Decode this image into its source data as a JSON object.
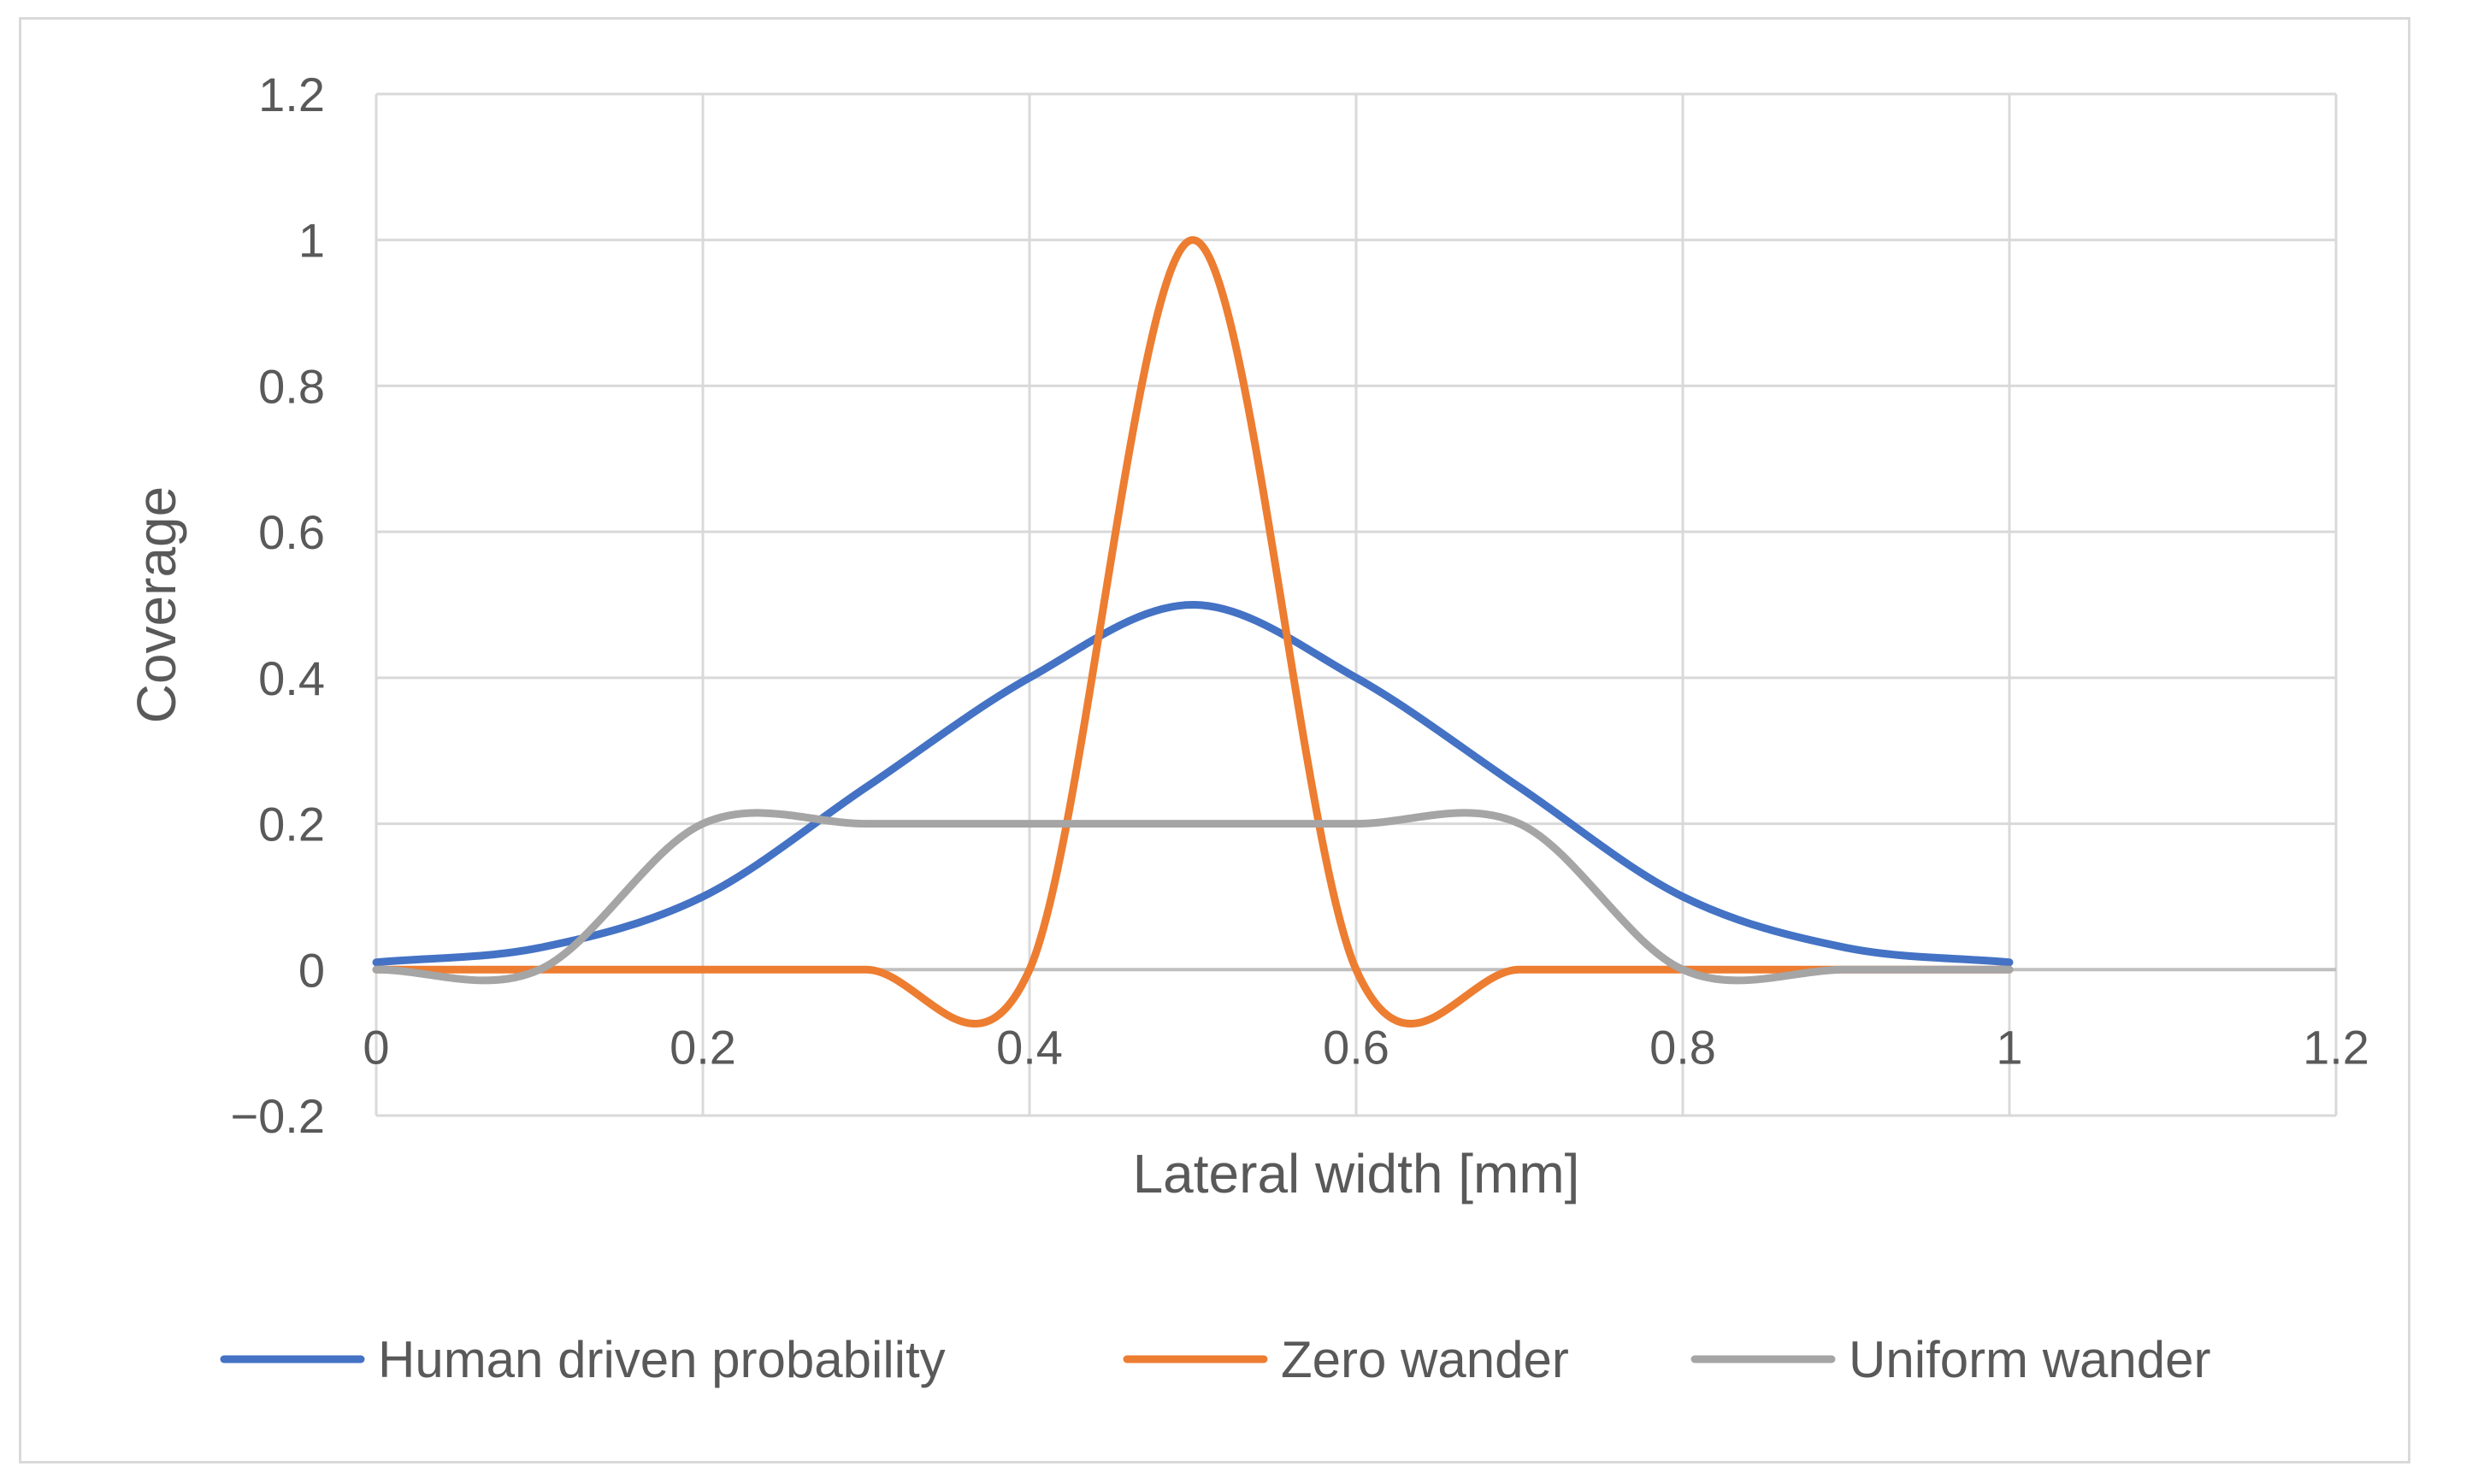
{
  "chart_data": {
    "type": "line",
    "title": "",
    "xlabel": "Lateral width [mm]",
    "ylabel": "Coverage",
    "xlim": [
      0,
      1.2
    ],
    "ylim": [
      -0.2,
      1.2
    ],
    "x_ticks": [
      "0",
      "0.2",
      "0.4",
      "0.6",
      "0.8",
      "1",
      "1.2"
    ],
    "y_ticks": [
      "−0.2",
      "0",
      "0.2",
      "0.4",
      "0.6",
      "0.8",
      "1",
      "1.2"
    ],
    "grid": true,
    "legend_position": "bottom",
    "series": [
      {
        "name": "Human driven probability",
        "color": "#4472c4",
        "x": [
          0,
          0.1,
          0.2,
          0.3,
          0.4,
          0.5,
          0.6,
          0.7,
          0.8,
          0.9,
          1
        ],
        "y": [
          0.01,
          0.03,
          0.1,
          0.25,
          0.4,
          0.5,
          0.4,
          0.25,
          0.1,
          0.03,
          0.01
        ]
      },
      {
        "name": "Zero wander",
        "color": "#ed7d31",
        "x": [
          0,
          0.1,
          0.2,
          0.3,
          0.4,
          0.5,
          0.6,
          0.7,
          0.8,
          0.9,
          1
        ],
        "y": [
          0,
          0,
          0,
          0,
          0,
          1,
          0,
          0,
          0,
          0,
          0
        ]
      },
      {
        "name": "Uniform wander",
        "color": "#a5a5a5",
        "x": [
          0,
          0.1,
          0.2,
          0.3,
          0.4,
          0.5,
          0.6,
          0.7,
          0.8,
          0.9,
          1
        ],
        "y": [
          0,
          0,
          0.2,
          0.2,
          0.2,
          0.2,
          0.2,
          0.2,
          0,
          0,
          0
        ]
      }
    ]
  }
}
